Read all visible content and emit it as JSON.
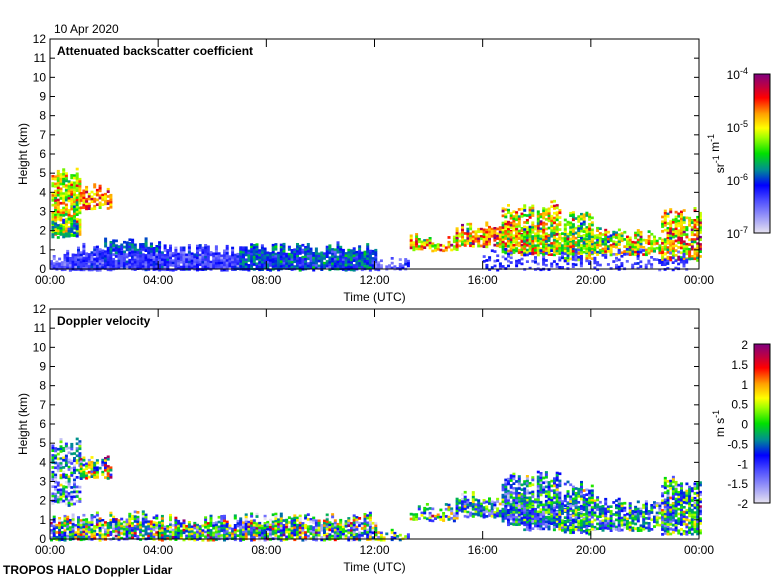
{
  "header": {
    "date": "10 Apr 2020"
  },
  "footer": {
    "instrument": "TROPOS HALO Doppler Lidar"
  },
  "chart_data": [
    {
      "type": "heatmap",
      "title": "Attenuated backscatter coefficient",
      "xlabel": "Time (UTC)",
      "ylabel": "Height (km)",
      "xlim": [
        0,
        24
      ],
      "ylim": [
        0,
        12
      ],
      "xticks": [
        0,
        4,
        8,
        12,
        16,
        20,
        24
      ],
      "xtick_labels": [
        "00:00",
        "04:00",
        "08:00",
        "12:00",
        "16:00",
        "20:00",
        "00:00"
      ],
      "yticks": [
        0,
        1,
        2,
        3,
        4,
        5,
        6,
        7,
        8,
        9,
        10,
        11,
        12
      ],
      "colorbar": {
        "label": "sr-1 m-1",
        "scale": "log",
        "range": [
          -7,
          -4
        ],
        "ticks": [
          -7,
          -6,
          -5,
          -4
        ],
        "tick_labels": [
          "10-7",
          "10-6",
          "10-5",
          "10-4"
        ]
      },
      "regions": [
        {
          "t": [
            0.05,
            1.1
          ],
          "h": [
            1.8,
            5.0
          ],
          "mean": -5.1,
          "spread": 0.5,
          "fill": 0.8
        },
        {
          "t": [
            1.1,
            2.2
          ],
          "h": [
            3.2,
            4.2
          ],
          "mean": -4.6,
          "spread": 0.4,
          "fill": 0.8
        },
        {
          "t": [
            0.05,
            1.0
          ],
          "h": [
            1.7,
            2.6
          ],
          "mean": -5.8,
          "spread": 0.3,
          "fill": 0.5
        },
        {
          "t": [
            0.0,
            2.0
          ],
          "h": [
            0.0,
            0.7
          ],
          "mean": -6.4,
          "spread": 0.2,
          "fill": 0.95
        },
        {
          "t": [
            0.8,
            4.0
          ],
          "h": [
            0.0,
            1.1
          ],
          "mean": -6.3,
          "spread": 0.25,
          "fill": 0.95
        },
        {
          "t": [
            2.0,
            4.0
          ],
          "h": [
            0.9,
            1.35
          ],
          "mean": -6.0,
          "spread": 0.2,
          "fill": 0.7
        },
        {
          "t": [
            4.0,
            7.0
          ],
          "h": [
            0.0,
            1.0
          ],
          "mean": -6.3,
          "spread": 0.25,
          "fill": 0.95
        },
        {
          "t": [
            7.0,
            12.0
          ],
          "h": [
            0.0,
            1.15
          ],
          "mean": -6.0,
          "spread": 0.3,
          "fill": 0.95
        },
        {
          "t": [
            12.0,
            13.2
          ],
          "h": [
            0.0,
            0.35
          ],
          "mean": -6.4,
          "spread": 0.2,
          "fill": 0.7
        },
        {
          "t": [
            13.3,
            15.0
          ],
          "h": [
            1.0,
            1.6
          ],
          "mean": -4.8,
          "spread": 0.6,
          "fill": 0.7
        },
        {
          "t": [
            15.0,
            17.5
          ],
          "h": [
            1.2,
            2.2
          ],
          "mean": -4.8,
          "spread": 0.6,
          "fill": 0.8
        },
        {
          "t": [
            16.7,
            17.8
          ],
          "h": [
            0.8,
            3.2
          ],
          "mean": -5.0,
          "spread": 0.6,
          "fill": 0.7
        },
        {
          "t": [
            18.0,
            18.8
          ],
          "h": [
            0.8,
            3.3
          ],
          "mean": -5.0,
          "spread": 0.6,
          "fill": 0.7
        },
        {
          "t": [
            17.5,
            21.0
          ],
          "h": [
            0.8,
            2.0
          ],
          "mean": -5.2,
          "spread": 0.6,
          "fill": 0.75
        },
        {
          "t": [
            19.0,
            20.0
          ],
          "h": [
            0.5,
            2.9
          ],
          "mean": -5.3,
          "spread": 0.6,
          "fill": 0.6
        },
        {
          "t": [
            21.0,
            23.0
          ],
          "h": [
            0.8,
            1.8
          ],
          "mean": -5.0,
          "spread": 0.6,
          "fill": 0.75
        },
        {
          "t": [
            22.6,
            24.0
          ],
          "h": [
            0.5,
            3.0
          ],
          "mean": -4.9,
          "spread": 0.6,
          "fill": 0.7
        },
        {
          "t": [
            16.0,
            23.5
          ],
          "h": [
            0.0,
            0.8
          ],
          "mean": -6.3,
          "spread": 0.2,
          "fill": 0.35
        }
      ]
    },
    {
      "type": "heatmap",
      "title": "Doppler velocity",
      "xlabel": "Time (UTC)",
      "ylabel": "Height (km)",
      "xlim": [
        0,
        24
      ],
      "ylim": [
        0,
        12
      ],
      "xticks": [
        0,
        4,
        8,
        12,
        16,
        20,
        24
      ],
      "xtick_labels": [
        "00:00",
        "04:00",
        "08:00",
        "12:00",
        "16:00",
        "20:00",
        "00:00"
      ],
      "yticks": [
        0,
        1,
        2,
        3,
        4,
        5,
        6,
        7,
        8,
        9,
        10,
        11,
        12
      ],
      "colorbar": {
        "label": "m s-1",
        "scale": "linear",
        "range": [
          -2,
          2
        ],
        "ticks": [
          -2,
          -1.5,
          -1,
          -0.5,
          0,
          0.5,
          1,
          1.5,
          2
        ],
        "tick_labels": [
          "-2",
          "-1.5",
          "-1",
          "-0.5",
          "0",
          "0.5",
          "1",
          "1.5",
          "2"
        ]
      },
      "regions": [
        {
          "t": [
            0.05,
            1.1
          ],
          "h": [
            1.8,
            5.0
          ],
          "mean": -0.8,
          "spread": 1.0,
          "fill": 0.6
        },
        {
          "t": [
            1.1,
            2.2
          ],
          "h": [
            3.2,
            4.2
          ],
          "mean": 0.2,
          "spread": 1.4,
          "fill": 0.7
        },
        {
          "t": [
            0.0,
            4.0
          ],
          "h": [
            0.0,
            1.2
          ],
          "mean": -0.2,
          "spread": 1.4,
          "fill": 0.85
        },
        {
          "t": [
            4.0,
            7.0
          ],
          "h": [
            0.0,
            1.0
          ],
          "mean": -0.1,
          "spread": 1.2,
          "fill": 0.85
        },
        {
          "t": [
            7.0,
            12.0
          ],
          "h": [
            0.0,
            1.15
          ],
          "mean": -0.3,
          "spread": 1.4,
          "fill": 0.85
        },
        {
          "t": [
            12.0,
            13.2
          ],
          "h": [
            0.0,
            0.35
          ],
          "mean": 0.0,
          "spread": 1.2,
          "fill": 0.5
        },
        {
          "t": [
            13.3,
            15.0
          ],
          "h": [
            1.0,
            1.6
          ],
          "mean": -0.3,
          "spread": 1.2,
          "fill": 0.6
        },
        {
          "t": [
            15.0,
            17.5
          ],
          "h": [
            1.2,
            2.2
          ],
          "mean": -0.6,
          "spread": 0.9,
          "fill": 0.8
        },
        {
          "t": [
            16.7,
            17.8
          ],
          "h": [
            0.8,
            3.2
          ],
          "mean": -0.7,
          "spread": 0.9,
          "fill": 0.7
        },
        {
          "t": [
            18.0,
            18.8
          ],
          "h": [
            0.8,
            3.3
          ],
          "mean": -0.6,
          "spread": 0.9,
          "fill": 0.7
        },
        {
          "t": [
            17.5,
            21.0
          ],
          "h": [
            0.5,
            2.0
          ],
          "mean": -0.6,
          "spread": 0.9,
          "fill": 0.75
        },
        {
          "t": [
            19.0,
            20.0
          ],
          "h": [
            0.3,
            2.9
          ],
          "mean": -0.5,
          "spread": 0.9,
          "fill": 0.6
        },
        {
          "t": [
            21.0,
            23.0
          ],
          "h": [
            0.5,
            1.8
          ],
          "mean": -0.4,
          "spread": 0.9,
          "fill": 0.75
        },
        {
          "t": [
            22.6,
            24.0
          ],
          "h": [
            0.3,
            3.0
          ],
          "mean": -0.3,
          "spread": 1.0,
          "fill": 0.7
        }
      ]
    }
  ]
}
